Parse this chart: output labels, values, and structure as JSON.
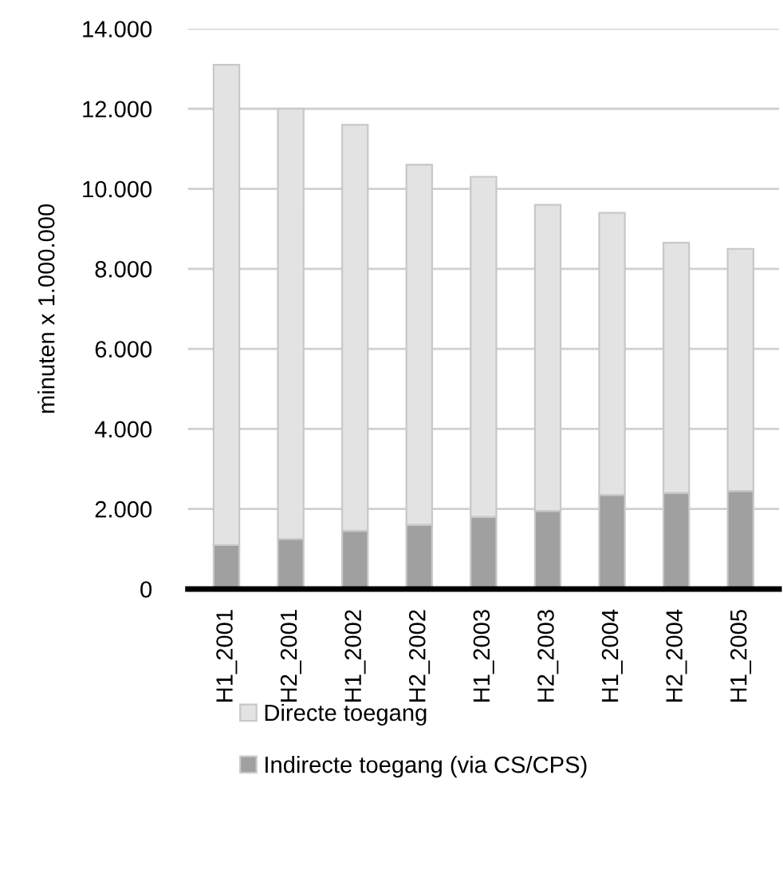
{
  "chart_data": {
    "type": "bar",
    "stacked": true,
    "ylabel": "minuten x 1.000.000",
    "categories": [
      "H1_2001",
      "H2_2001",
      "H1_2002",
      "H2_2002",
      "H1_2003",
      "H2_2003",
      "H1_2004",
      "H2_2004",
      "H1_2005"
    ],
    "series": [
      {
        "name": "Indirecte toegang (via CS/CPS)",
        "color": "#a0a0a0",
        "values": [
          1100,
          1250,
          1450,
          1600,
          1800,
          1950,
          2350,
          2400,
          2450
        ]
      },
      {
        "name": "Directe toegang",
        "color": "#e3e3e3",
        "values": [
          12000,
          10750,
          10150,
          9000,
          8500,
          7650,
          7050,
          6250,
          6050
        ]
      }
    ],
    "ylim": [
      0,
      14000
    ],
    "yticks": [
      0,
      {
        "value": 2000,
        "label": "2.000"
      },
      {
        "value": 4000,
        "label": "4.000"
      },
      {
        "value": 6000,
        "label": "6.000"
      },
      {
        "value": 8000,
        "label": "8.000"
      },
      {
        "value": 10000,
        "label": "10.000"
      },
      {
        "value": 12000,
        "label": "12.000"
      },
      {
        "value": 14000,
        "label": "14.000"
      }
    ],
    "grid": "y",
    "legend": "bottom"
  }
}
